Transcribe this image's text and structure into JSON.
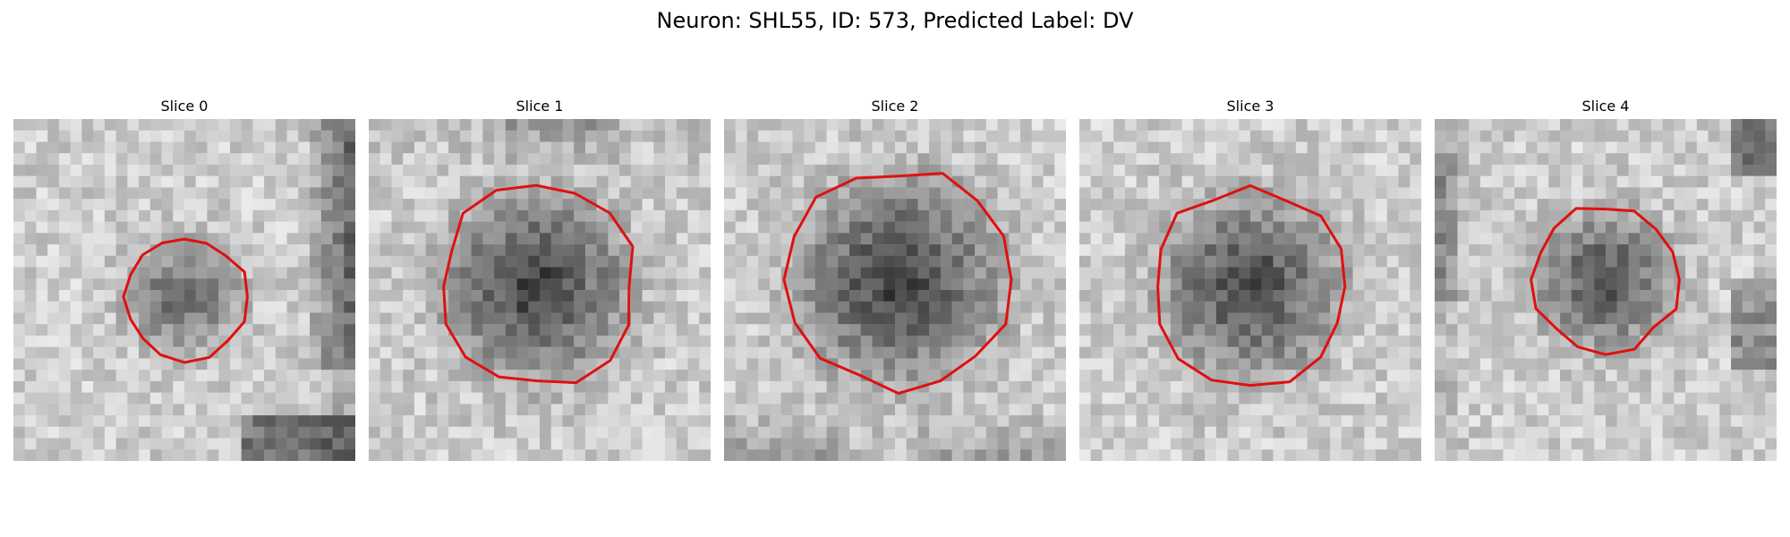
{
  "figure": {
    "title": "Neuron: SHL55, ID: 573, Predicted Label: DV"
  },
  "panels": [
    {
      "title": "Slice 0",
      "image": "grayscale microscopy crop with a small dark cell body",
      "contour_color": "#e01010"
    },
    {
      "title": "Slice 1",
      "image": "grayscale microscopy crop with a large dark cell body",
      "contour_color": "#e01010"
    },
    {
      "title": "Slice 2",
      "image": "grayscale microscopy crop with a large dark cell body",
      "contour_color": "#e01010"
    },
    {
      "title": "Slice 3",
      "image": "grayscale microscopy crop with a large dark cell body",
      "contour_color": "#e01010"
    },
    {
      "title": "Slice 4",
      "image": "grayscale microscopy crop with a medium dark cell body",
      "contour_color": "#e01010"
    }
  ]
}
